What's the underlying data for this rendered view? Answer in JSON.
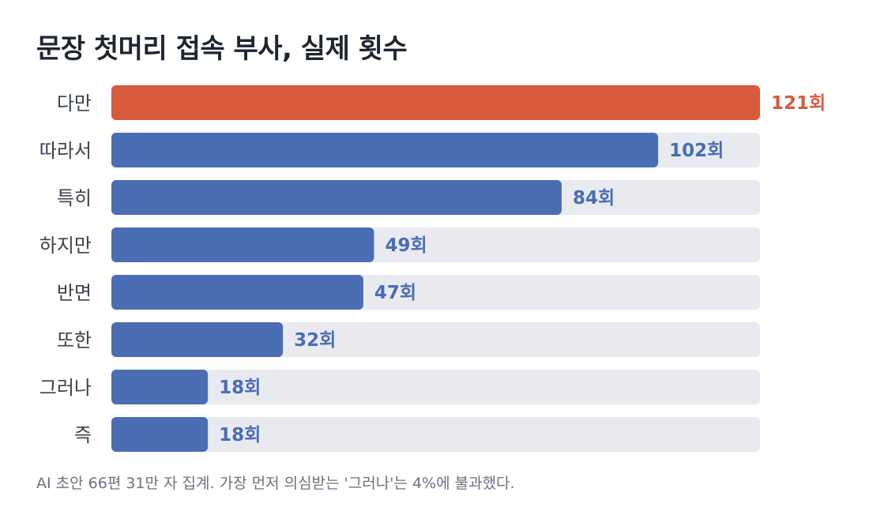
{
  "chart_data": {
    "type": "bar",
    "orientation": "horizontal",
    "title": "문장 첫머리 접속 부사, 실제 횟수",
    "categories": [
      "다만",
      "따라서",
      "특히",
      "하지만",
      "반면",
      "또한",
      "그러나",
      "즉"
    ],
    "values": [
      121,
      102,
      84,
      49,
      47,
      32,
      18,
      18
    ],
    "value_labels": [
      "121회",
      "102회",
      "84회",
      "49회",
      "47회",
      "32회",
      "18회",
      "18회"
    ],
    "highlight_index": 0,
    "xlim": [
      0,
      121
    ],
    "grid": false,
    "legend": "none"
  },
  "colors": {
    "highlight": "#d65a3b",
    "bar": "#4a6db3",
    "track": "#e8eaf0",
    "title": "#1f2530",
    "category_text": "#3b4150",
    "footnote_text": "#6b7280"
  },
  "footnote": "AI 초안 66편 31만 자 집계. 가장 먼저 의심받는 '그러나'는 4%에 불과했다."
}
